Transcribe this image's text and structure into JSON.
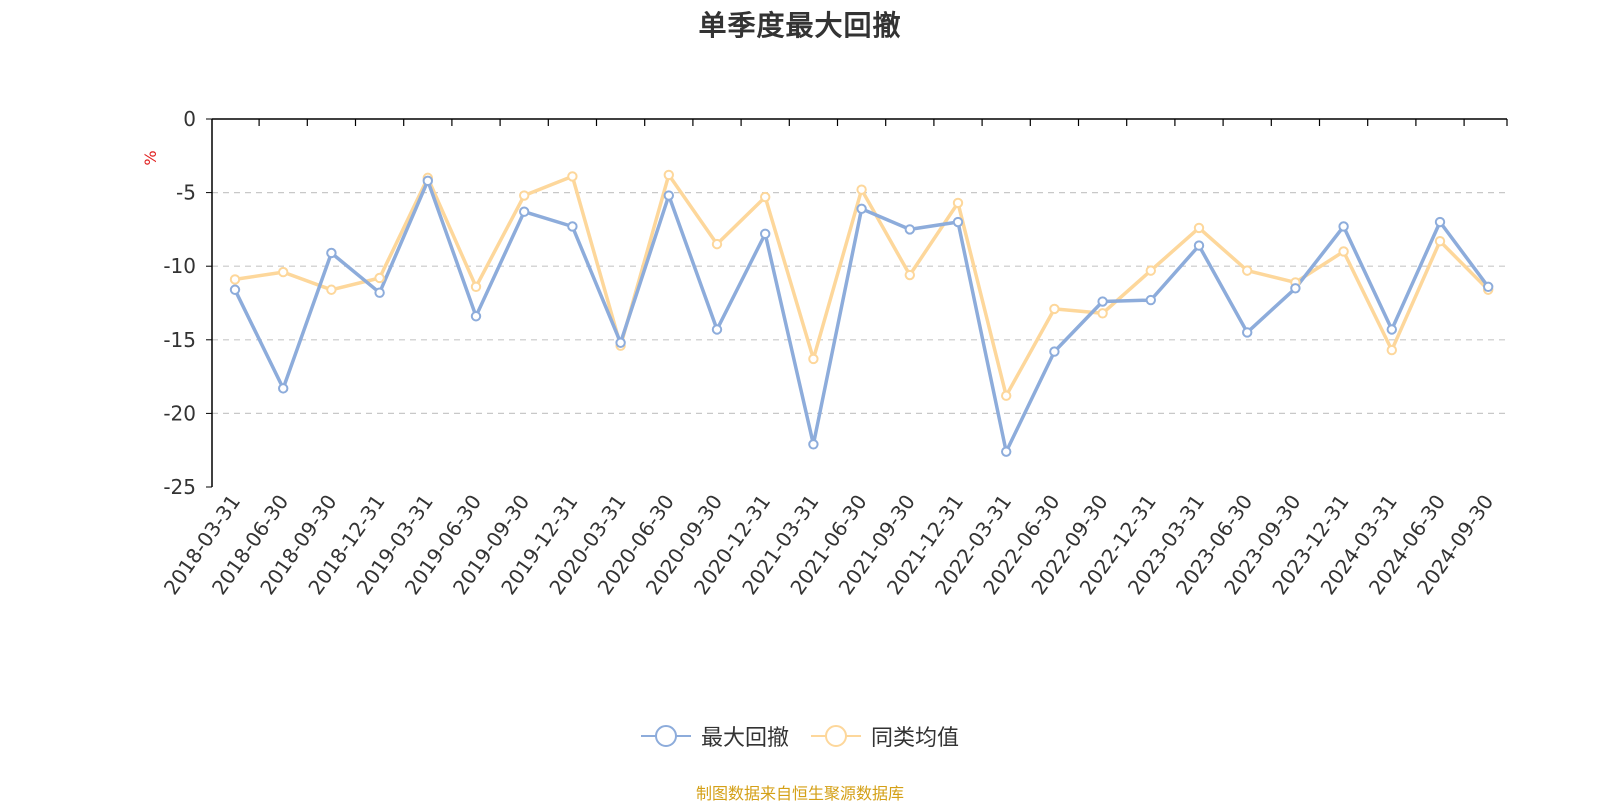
{
  "colors": {
    "series1": "#8dacdb",
    "series2": "#fdd79b",
    "axis": "#000000",
    "grid": "#c8c8c8",
    "text": "#333333",
    "unit": "#e02020",
    "source": "#d4a017"
  },
  "chart_data": {
    "type": "line",
    "title": "单季度最大回撤",
    "ylabel": "%",
    "ylim": [
      -25,
      0
    ],
    "yticks": [
      0,
      -5,
      -10,
      -15,
      -20,
      -25
    ],
    "grid": "horizontal-dashed",
    "legend_position": "bottom-center",
    "categories": [
      "2018-03-31",
      "2018-06-30",
      "2018-09-30",
      "2018-12-31",
      "2019-03-31",
      "2019-06-30",
      "2019-09-30",
      "2019-12-31",
      "2020-03-31",
      "2020-06-30",
      "2020-09-30",
      "2020-12-31",
      "2021-03-31",
      "2021-06-30",
      "2021-09-30",
      "2021-12-31",
      "2022-03-31",
      "2022-06-30",
      "2022-09-30",
      "2022-12-31",
      "2023-03-31",
      "2023-06-30",
      "2023-09-30",
      "2023-12-31",
      "2024-03-31",
      "2024-06-30",
      "2024-09-30"
    ],
    "series": [
      {
        "name": "最大回撤",
        "values": [
          -11.6,
          -18.3,
          -9.1,
          -11.8,
          -4.2,
          -13.4,
          -6.3,
          -7.3,
          -15.2,
          -5.2,
          -14.3,
          -7.8,
          -22.1,
          -6.1,
          -7.5,
          -7.0,
          -22.6,
          -15.8,
          -12.4,
          -12.3,
          -8.6,
          -14.5,
          -11.5,
          -7.3,
          -14.3,
          -7.0,
          -11.4
        ]
      },
      {
        "name": "同类均值",
        "values": [
          -10.9,
          -10.4,
          -11.6,
          -10.8,
          -4.0,
          -11.4,
          -5.2,
          -3.9,
          -15.4,
          -3.8,
          -8.5,
          -5.3,
          -16.3,
          -4.8,
          -10.6,
          -5.7,
          -18.8,
          -12.9,
          -13.2,
          -10.3,
          -7.4,
          -10.3,
          -11.1,
          -9.0,
          -15.7,
          -8.3,
          -11.6
        ]
      }
    ]
  },
  "legend": {
    "item1_label": "最大回撤",
    "item2_label": "同类均值"
  },
  "footer": {
    "source_text": "制图数据来自恒生聚源数据库"
  }
}
